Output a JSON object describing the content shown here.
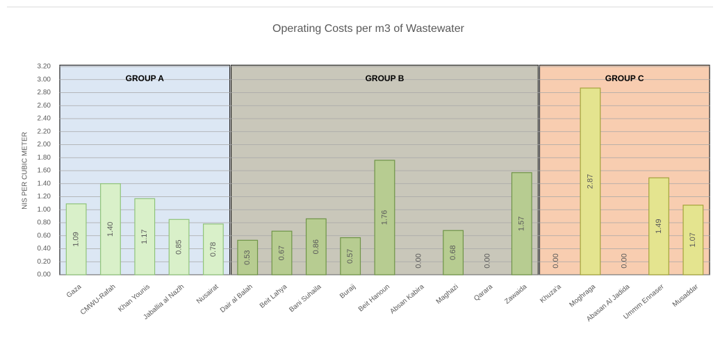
{
  "chart_data": {
    "type": "bar",
    "title": "Operating  Costs per m3 of Wastewater",
    "y_label": "NIS PER CUBIC METER",
    "ylim": [
      0,
      3.2
    ],
    "yticks": [
      {
        "value": 0,
        "label": "0.00"
      },
      {
        "value": 0.2,
        "label": "0.20"
      },
      {
        "value": 0.4,
        "label": "0.40"
      },
      {
        "value": 0.6,
        "label": "0.60"
      },
      {
        "value": 0.8,
        "label": "0.80"
      },
      {
        "value": 1,
        "label": "1.00"
      },
      {
        "value": 1.2,
        "label": "1.20"
      },
      {
        "value": 1.4,
        "label": "1.40"
      },
      {
        "value": 1.6,
        "label": "1.60"
      },
      {
        "value": 1.8,
        "label": "1.80"
      },
      {
        "value": 2,
        "label": "2.00"
      },
      {
        "value": 2.2,
        "label": "2.20"
      },
      {
        "value": 2.4,
        "label": "2.40"
      },
      {
        "value": 2.6,
        "label": "2.60"
      },
      {
        "value": 2.8,
        "label": "2.80"
      },
      {
        "value": 3,
        "label": "3.00"
      },
      {
        "value": 3.2,
        "label": "3.20"
      }
    ],
    "grid": true,
    "series": [
      {
        "name": "GROUP A",
        "background": "#dce7f4",
        "color": "#d9f0c9",
        "border": "#8fc37a",
        "categories": [
          "Gaza",
          "CMWU-Rafah",
          "Khan Younis",
          "Jaballia al Nazlh",
          "Nusairat"
        ],
        "values": [
          1.09,
          1.4,
          1.17,
          0.85,
          0.78
        ],
        "value_labels": [
          "1.09",
          "1.40",
          "1.17",
          "0.85",
          "0.78"
        ]
      },
      {
        "name": "GROUP B",
        "background": "#c9c7ba",
        "color": "#b7cc91",
        "border": "#6e9446",
        "categories": [
          "Dair al Balah",
          "Beit Lahya",
          "Bani Suhaila",
          "Buraij",
          "Beit Hanoun",
          "Absan Kabira",
          "Maghazi",
          "Qarara",
          "Zawaida"
        ],
        "values": [
          0.53,
          0.67,
          0.86,
          0.57,
          1.76,
          0,
          0.68,
          0,
          1.57
        ],
        "value_labels": [
          "0.53",
          "0.67",
          "0.86",
          "0.57",
          "1.76",
          "0.00",
          "0.68",
          "0.00",
          "1.57"
        ]
      },
      {
        "name": "GROUP C",
        "background": "#f8cdb0",
        "color": "#e4e48f",
        "border": "#a3a33a",
        "categories": [
          "Khuza'a",
          "Moghraga",
          "Abasan Al Jadida",
          "Ummm Ennaser",
          "Musaddar"
        ],
        "values": [
          0,
          2.87,
          0,
          1.49,
          1.07
        ],
        "value_labels": [
          "0.00",
          "2.87",
          "0.00",
          "1.49",
          "1.07"
        ]
      }
    ]
  }
}
